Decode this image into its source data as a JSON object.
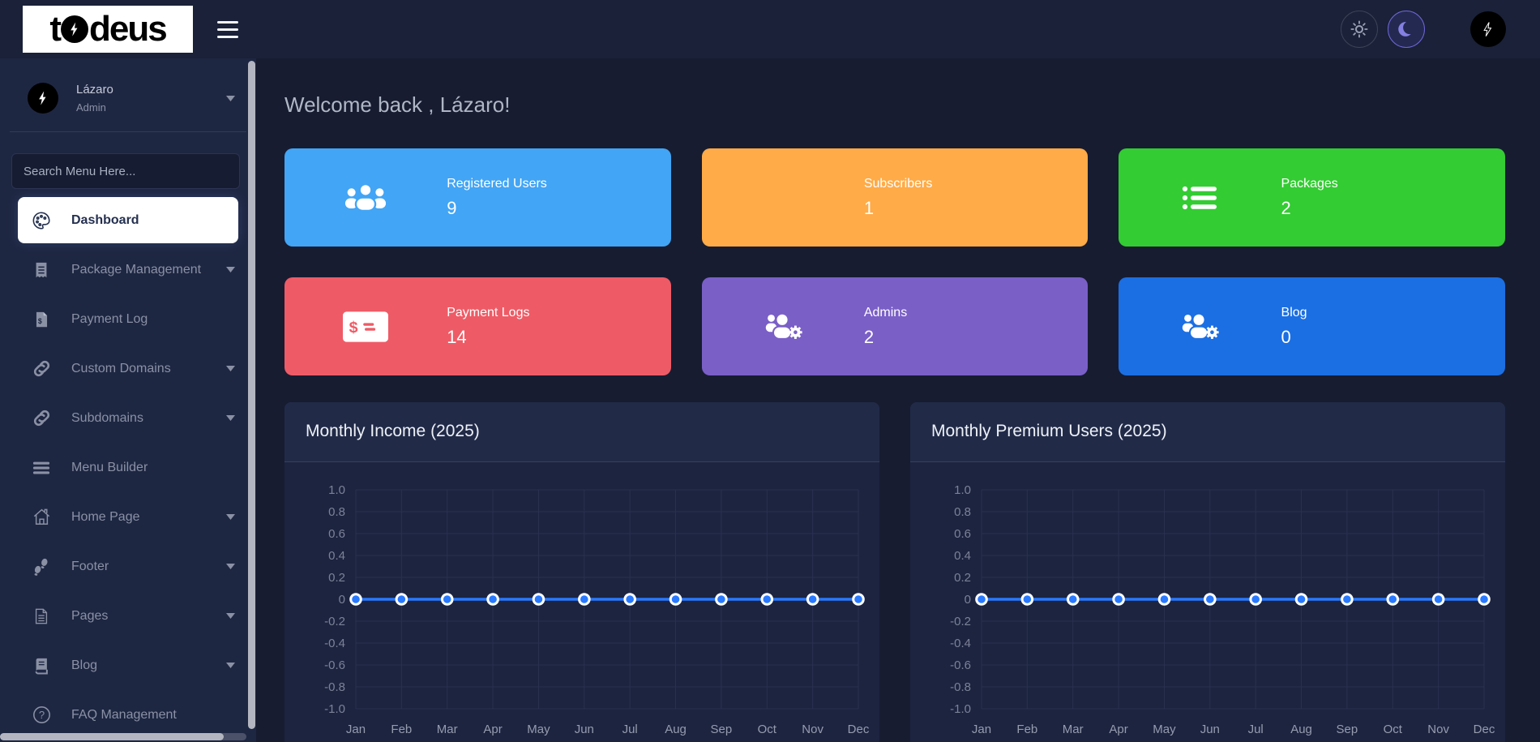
{
  "app": {
    "logo_text": "todeus"
  },
  "topbar": {
    "buttons": [
      {
        "name": "sun-icon"
      },
      {
        "name": "moon-icon"
      },
      {
        "name": "profile-avatar"
      }
    ]
  },
  "sidebar": {
    "user": {
      "name": "Lázaro",
      "role": "Admin"
    },
    "search_placeholder": "Search Menu Here...",
    "items": [
      {
        "label": "Dashboard",
        "icon": "palette-icon",
        "active": true,
        "caret": false
      },
      {
        "label": "Package Management",
        "icon": "receipt-icon",
        "active": false,
        "caret": true
      },
      {
        "label": "Payment Log",
        "icon": "invoice-dollar-icon",
        "active": false,
        "caret": false
      },
      {
        "label": "Custom Domains",
        "icon": "link-icon",
        "active": false,
        "caret": true
      },
      {
        "label": "Subdomains",
        "icon": "link-icon",
        "active": false,
        "caret": true
      },
      {
        "label": "Menu Builder",
        "icon": "bars-icon",
        "active": false,
        "caret": false
      },
      {
        "label": "Home Page",
        "icon": "home-icon",
        "active": false,
        "caret": true
      },
      {
        "label": "Footer",
        "icon": "footprints-icon",
        "active": false,
        "caret": true
      },
      {
        "label": "Pages",
        "icon": "file-lines-icon",
        "active": false,
        "caret": true
      },
      {
        "label": "Blog",
        "icon": "book-icon",
        "active": false,
        "caret": true
      },
      {
        "label": "FAQ Management",
        "icon": "question-circle-icon",
        "active": false,
        "caret": false
      }
    ]
  },
  "main": {
    "welcome": "Welcome back , Lázaro!",
    "stats": [
      {
        "label": "Registered Users",
        "value": "9",
        "color": "#42a5f5",
        "icon": "users-icon"
      },
      {
        "label": "Subscribers",
        "value": "1",
        "color": "#ffab47",
        "icon": null
      },
      {
        "label": "Packages",
        "value": "2",
        "color": "#33cc33",
        "icon": "list-icon"
      },
      {
        "label": "Payment Logs",
        "value": "14",
        "color": "#ee5b66",
        "icon": "money-check-icon"
      },
      {
        "label": "Admins",
        "value": "2",
        "color": "#7a5fc7",
        "icon": "users-gear-icon"
      },
      {
        "label": "Blog",
        "value": "0",
        "color": "#1b6fe3",
        "icon": "users-gear-icon"
      }
    ]
  },
  "chart_data": [
    {
      "type": "line",
      "title": "Monthly Income (2025)",
      "categories": [
        "Jan",
        "Feb",
        "Mar",
        "Apr",
        "May",
        "Jun",
        "Jul",
        "Aug",
        "Sep",
        "Oct",
        "Nov",
        "Dec"
      ],
      "values": [
        0,
        0,
        0,
        0,
        0,
        0,
        0,
        0,
        0,
        0,
        0,
        0
      ],
      "ylim": [
        -1.0,
        1.0
      ],
      "ytick_step": 0.2,
      "grid": true,
      "legend": false,
      "line_color": "#2979ff",
      "marker_fill": "#2979ff",
      "marker_ring": "#ffffff"
    },
    {
      "type": "line",
      "title": "Monthly Premium Users (2025)",
      "categories": [
        "Jan",
        "Feb",
        "Mar",
        "Apr",
        "May",
        "Jun",
        "Jul",
        "Aug",
        "Sep",
        "Oct",
        "Nov",
        "Dec"
      ],
      "values": [
        0,
        0,
        0,
        0,
        0,
        0,
        0,
        0,
        0,
        0,
        0,
        0
      ],
      "ylim": [
        -1.0,
        1.0
      ],
      "ytick_step": 0.2,
      "grid": true,
      "legend": false,
      "line_color": "#2979ff",
      "marker_fill": "#2979ff",
      "marker_ring": "#ffffff"
    }
  ]
}
